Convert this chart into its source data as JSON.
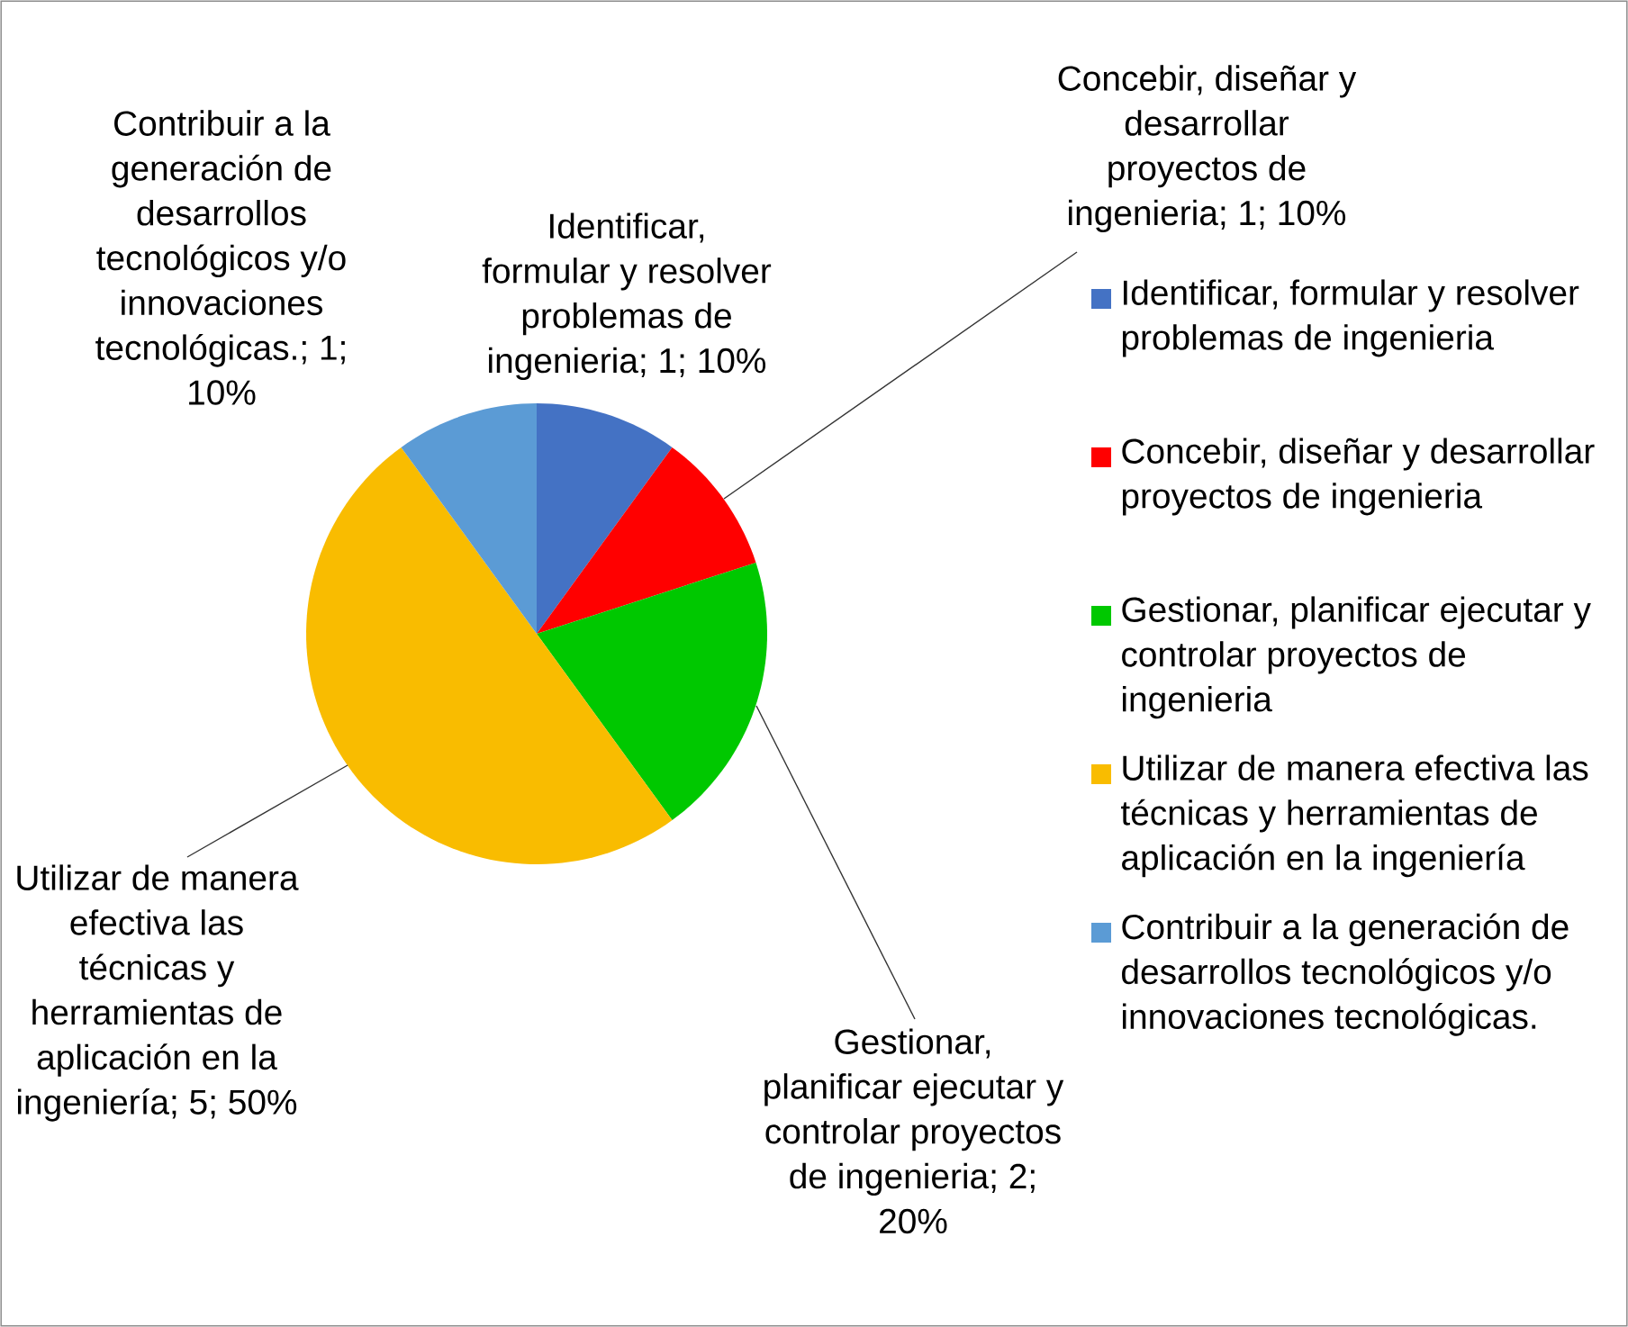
{
  "chart_data": {
    "type": "pie",
    "categories": [
      "Identificar, formular y resolver problemas de ingenieria",
      "Concebir, diseñar y desarrollar proyectos de ingenieria",
      "Gestionar, planificar ejecutar y controlar proyectos de ingenieria",
      "Utilizar de manera efectiva las técnicas y herramientas de aplicación en la ingeniería",
      "Contribuir a la generación de desarrollos tecnológicos y/o innovaciones tecnológicas."
    ],
    "values": [
      1,
      1,
      2,
      5,
      1
    ],
    "colors": [
      "#4472c4",
      "#ff0000",
      "#00c800",
      "#f9bc00",
      "#5b9bd5"
    ],
    "value_labels": [
      "Identificar, formular y resolver problemas de ingenieria; 1; 10%",
      "Concebir, diseñar y desarrollar proyectos de ingenieria; 1; 10%",
      "Gestionar, planificar ejecutar y controlar proyectos de ingenieria; 2; 20%",
      "Utilizar de manera efectiva las técnicas y herramientas de aplicación en la ingeniería; 5; 50%",
      "Contribuir a la generación de desarrollos tecnológicos y/o innovaciones tecnológicas.; 1; 10%"
    ],
    "legend": "right"
  }
}
